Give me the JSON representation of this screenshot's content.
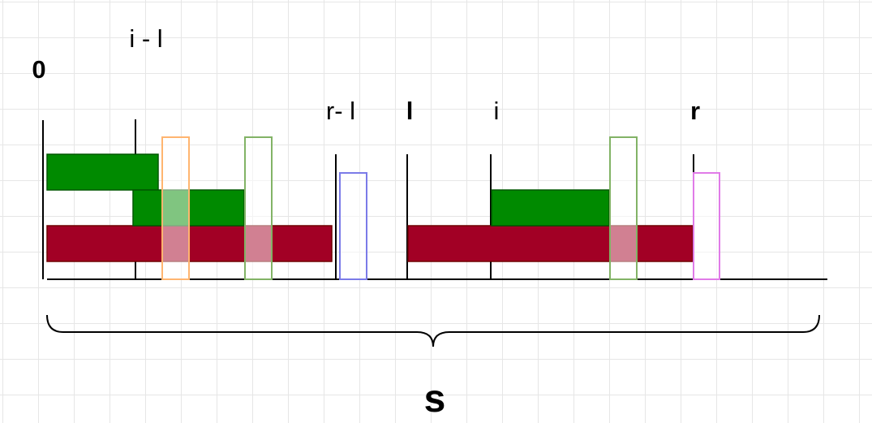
{
  "labels": {
    "zero": "0",
    "i_minus_l": "i - l",
    "r_minus_l": "r- l",
    "l": "l",
    "i": "i",
    "r": "r",
    "s": "s"
  },
  "colors": {
    "green": "#008a00",
    "green_border": "#005700",
    "red": "#a20025",
    "red_border": "#6f0000",
    "orange_outline": "#ffb570",
    "green_outline": "#82b366",
    "blue_outline": "#7b7be8",
    "pink_outline": "#e07be8",
    "axis": "#000000"
  }
}
